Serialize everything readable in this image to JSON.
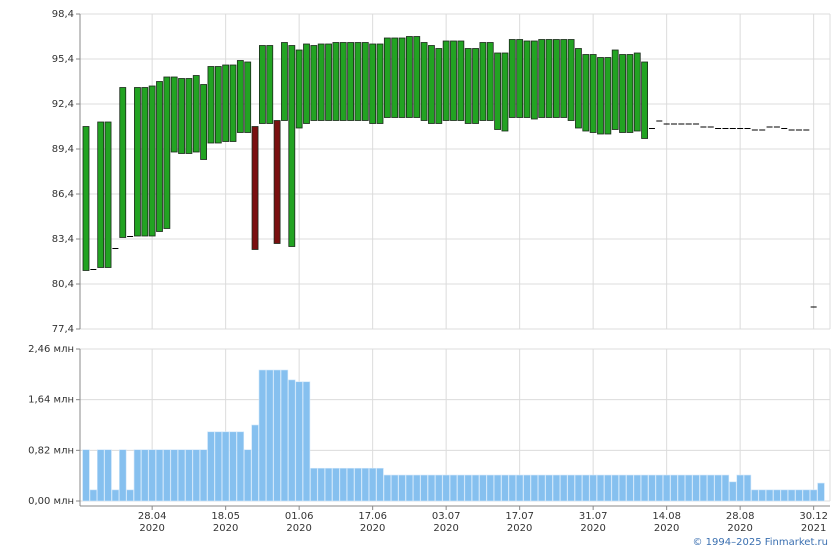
{
  "chart_data": [
    {
      "type": "candlestick",
      "up_color": "#22a322",
      "down_color": "#7a1010",
      "flat_color": "#000000",
      "ylim": [
        77.4,
        98.4
      ],
      "yticks": [
        {
          "value": 77.4,
          "label": "77,4"
        },
        {
          "value": 80.4,
          "label": "80,4"
        },
        {
          "value": 83.4,
          "label": "83,4"
        },
        {
          "value": 86.4,
          "label": "86,4"
        },
        {
          "value": 89.4,
          "label": "89,4"
        },
        {
          "value": 92.4,
          "label": "92,4"
        },
        {
          "value": 95.4,
          "label": "95,4"
        },
        {
          "value": 98.4,
          "label": "98,4"
        }
      ],
      "grid": true,
      "open": [
        81.3,
        81.4,
        81.5,
        81.5,
        82.8,
        83.5,
        83.6,
        83.6,
        83.6,
        83.6,
        83.9,
        84.1,
        89.2,
        89.1,
        89.1,
        89.2,
        88.7,
        89.8,
        89.8,
        89.9,
        89.9,
        90.5,
        90.5,
        90.9,
        91.1,
        91.1,
        91.3,
        91.3,
        82.9,
        90.8,
        91.1,
        91.3,
        91.3,
        91.3,
        91.3,
        91.3,
        91.3,
        91.3,
        91.3,
        91.1,
        91.1,
        91.5,
        91.5,
        91.5,
        91.5,
        91.5,
        91.3,
        91.1,
        91.1,
        91.3,
        91.3,
        91.3,
        91.1,
        91.1,
        91.3,
        91.3,
        90.7,
        90.6,
        91.5,
        91.5,
        91.5,
        91.4,
        91.5,
        91.5,
        91.5,
        91.5,
        91.3,
        90.8,
        90.6,
        90.5,
        90.4,
        90.4,
        90.7,
        90.5,
        90.5,
        90.6,
        90.1,
        90.8,
        91.3,
        91.1,
        91.1,
        91.1,
        91.1,
        91.1,
        90.9,
        90.9,
        90.8,
        90.8,
        90.8,
        90.8,
        90.8,
        90.7,
        90.7,
        90.9,
        90.9,
        90.8,
        90.7,
        90.7,
        90.7,
        78.9
      ],
      "close": [
        90.9,
        81.4,
        91.2,
        91.2,
        82.8,
        93.5,
        83.6,
        93.5,
        93.5,
        93.6,
        93.9,
        94.2,
        94.2,
        94.1,
        94.1,
        94.3,
        93.7,
        94.9,
        94.9,
        95.0,
        95.0,
        95.3,
        95.2,
        82.7,
        96.3,
        96.3,
        83.1,
        96.5,
        96.3,
        96.0,
        96.4,
        96.3,
        96.4,
        96.4,
        96.5,
        96.5,
        96.5,
        96.5,
        96.5,
        96.4,
        96.4,
        96.8,
        96.8,
        96.8,
        96.9,
        96.9,
        96.5,
        96.3,
        96.1,
        96.6,
        96.6,
        96.6,
        96.1,
        96.1,
        96.5,
        96.5,
        95.8,
        95.8,
        96.7,
        96.7,
        96.6,
        96.6,
        96.7,
        96.7,
        96.7,
        96.7,
        96.7,
        96.1,
        95.7,
        95.7,
        95.5,
        95.5,
        96.0,
        95.7,
        95.7,
        95.8,
        95.2,
        90.8,
        91.3,
        91.1,
        91.1,
        91.1,
        91.1,
        91.1,
        90.9,
        90.9,
        90.8,
        90.8,
        90.8,
        90.8,
        90.8,
        90.7,
        90.7,
        90.9,
        90.9,
        90.8,
        90.7,
        90.7,
        90.7,
        78.9
      ]
    },
    {
      "type": "bar",
      "color": "#86c0ef",
      "ylim": [
        0,
        2.46
      ],
      "yticks": [
        {
          "value": 0,
          "label": "0,00 млн"
        },
        {
          "value": 0.82,
          "label": "0,82 млн"
        },
        {
          "value": 1.64,
          "label": "1,64 млн"
        },
        {
          "value": 2.46,
          "label": "2,46 млн"
        }
      ],
      "grid": true,
      "xticks": [
        {
          "value": 9,
          "label": "28.04",
          "year": "2020"
        },
        {
          "value": 19,
          "label": "18.05",
          "year": "2020"
        },
        {
          "value": 29,
          "label": "01.06",
          "year": "2020"
        },
        {
          "value": 39,
          "label": "17.06",
          "year": "2020"
        },
        {
          "value": 49,
          "label": "03.07",
          "year": "2020"
        },
        {
          "value": 59,
          "label": "17.07",
          "year": "2020"
        },
        {
          "value": 69,
          "label": "31.07",
          "year": "2020"
        },
        {
          "value": 79,
          "label": "14.08",
          "year": "2020"
        },
        {
          "value": 89,
          "label": "28.08",
          "year": "2020"
        },
        {
          "value": 99,
          "label": "30.12",
          "year": "2021"
        }
      ],
      "values": [
        0.83,
        0.18,
        0.83,
        0.83,
        0.18,
        0.83,
        0.18,
        0.83,
        0.83,
        0.83,
        0.83,
        0.83,
        0.83,
        0.83,
        0.83,
        0.83,
        0.83,
        1.12,
        1.12,
        1.12,
        1.12,
        1.12,
        0.83,
        1.23,
        2.12,
        2.12,
        2.12,
        2.12,
        1.96,
        1.93,
        1.93,
        0.53,
        0.53,
        0.53,
        0.53,
        0.53,
        0.53,
        0.53,
        0.53,
        0.53,
        0.53,
        0.42,
        0.42,
        0.42,
        0.42,
        0.42,
        0.42,
        0.42,
        0.42,
        0.42,
        0.42,
        0.42,
        0.42,
        0.42,
        0.42,
        0.42,
        0.42,
        0.42,
        0.42,
        0.42,
        0.42,
        0.42,
        0.42,
        0.42,
        0.42,
        0.42,
        0.42,
        0.42,
        0.42,
        0.42,
        0.42,
        0.42,
        0.42,
        0.42,
        0.42,
        0.42,
        0.42,
        0.42,
        0.42,
        0.42,
        0.42,
        0.42,
        0.42,
        0.42,
        0.42,
        0.42,
        0.42,
        0.42,
        0.31,
        0.42,
        0.42,
        0.18,
        0.18,
        0.18,
        0.18,
        0.18,
        0.18,
        0.18,
        0.18,
        0.18,
        0.29
      ]
    }
  ],
  "footer": "© 1994–2025 Finmarket.ru"
}
